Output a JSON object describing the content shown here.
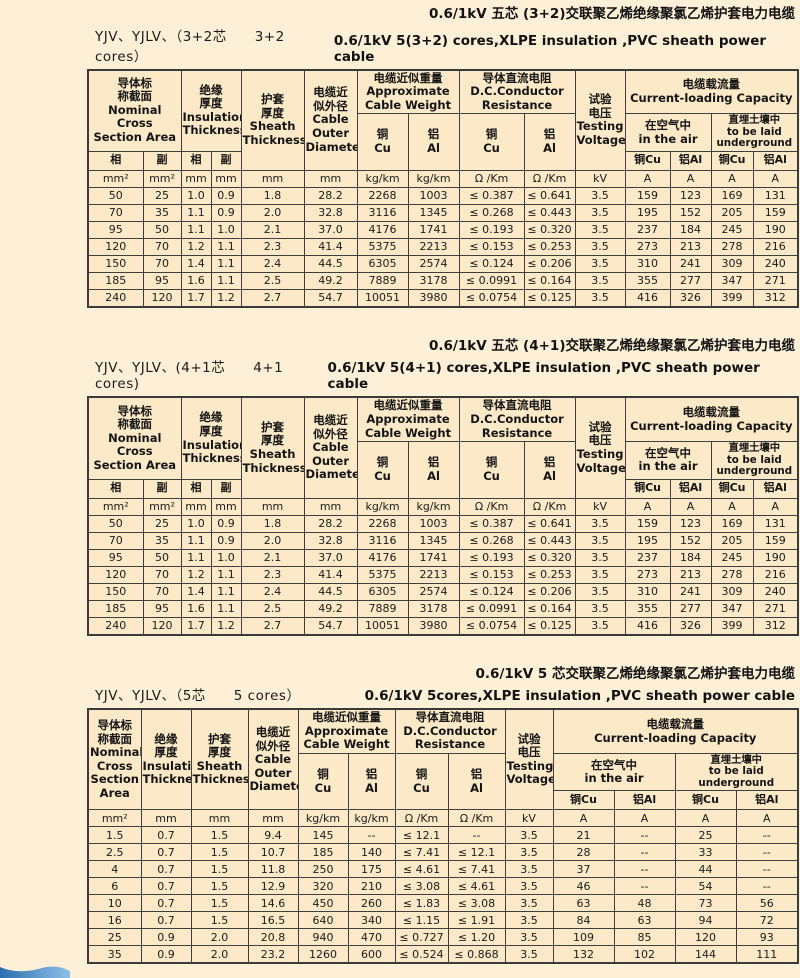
{
  "colors": {
    "page_bg": "#FDF0D7",
    "table_bg": "#FBE9C7",
    "border": "#3F3F3F",
    "wave_blue_dark": "#2A6FAE",
    "wave_blue_light": "#8FC0E8"
  },
  "sections": [
    {
      "title_zh": "0.6/1kV 五芯 (3+2)交联聚乙烯绝缘聚氯乙烯护套电力电缆",
      "title_en": "0.6/1kV 5(3+2) cores,XLPE insulation ,PVC sheath power cable",
      "model_label": "YJV、YJLV、（3+2芯　　3+2 cores）"
    },
    {
      "title_zh": "0.6/1kV 五芯 (4+1)交联聚乙烯绝缘聚氯乙烯护套电力电缆",
      "title_en": "0.6/1kV 5(4+1) cores,XLPE insulation ,PVC sheath power cable",
      "model_label": "YJV、YJLV、(4+1芯　　4+1 cores)"
    },
    {
      "title_zh": "0.6/1kV 5 芯交联聚乙烯绝缘聚氯乙烯护套电力电缆",
      "title_en": "0.6/1kV 5cores,XLPE insulation ,PVC sheath power cable",
      "model_label": "YJV、YJLV、（5芯　　5 cores）"
    }
  ],
  "headers": {
    "common": {
      "ncsa": "导体标\n称截面\nNominal Cross\nSection Area",
      "insulation": "绝缘\n厚度\nInsulation\nThickness",
      "sheath": "护套\n厚度\nSheath\nThickness",
      "outer": "电缆近\n似外径\nCable\nOuter\nDiameter",
      "weight": "电缆近似重量\nApproximate\nCable Weight",
      "dc_resistance": "导体直流电阻\nD.C.Conductor\nResistance",
      "voltage": "试验\n电压\nTesting\nVoltage",
      "capacity": "电缆载流量\nCurrent-loading Capacity",
      "air": "在空气中\nin the air",
      "underground": "直埋土壤中\nto be laid\nunderground",
      "cu": "铜\nCu",
      "al": "铝\nAl",
      "cu_short": "铜Cu",
      "al_short": "铝Al",
      "phase": "相",
      "aux": "副"
    },
    "five_core": {
      "ncsa": "导体标\n称截面\nNominal\nCross\nSection Area"
    }
  },
  "tables": {
    "t12_units": [
      [
        "mm²",
        "mm²",
        "mm",
        "mm",
        "mm",
        "mm",
        "kg/km",
        "kg/km",
        "Ω /Km",
        "Ω /Km",
        "kV",
        "A",
        "A",
        "A",
        "A"
      ]
    ],
    "t12_rows": [
      [
        "50",
        "25",
        "1.0",
        "0.9",
        "1.8",
        "28.2",
        "2268",
        "1003",
        "≤ 0.387",
        "≤ 0.641",
        "3.5",
        "159",
        "123",
        "169",
        "131"
      ],
      [
        "70",
        "35",
        "1.1",
        "0.9",
        "2.0",
        "32.8",
        "3116",
        "1345",
        "≤ 0.268",
        "≤ 0.443",
        "3.5",
        "195",
        "152",
        "205",
        "159"
      ],
      [
        "95",
        "50",
        "1.1",
        "1.0",
        "2.1",
        "37.0",
        "4176",
        "1741",
        "≤ 0.193",
        "≤ 0.320",
        "3.5",
        "237",
        "184",
        "245",
        "190"
      ],
      [
        "120",
        "70",
        "1.2",
        "1.1",
        "2.3",
        "41.4",
        "5375",
        "2213",
        "≤ 0.153",
        "≤ 0.253",
        "3.5",
        "273",
        "213",
        "278",
        "216"
      ],
      [
        "150",
        "70",
        "1.4",
        "1.1",
        "2.4",
        "44.5",
        "6305",
        "2574",
        "≤ 0.124",
        "≤ 0.206",
        "3.5",
        "310",
        "241",
        "309",
        "240"
      ],
      [
        "185",
        "95",
        "1.6",
        "1.1",
        "2.5",
        "49.2",
        "7889",
        "3178",
        "≤ 0.0991",
        "≤ 0.164",
        "3.5",
        "355",
        "277",
        "347",
        "271"
      ],
      [
        "240",
        "120",
        "1.7",
        "1.2",
        "2.7",
        "54.7",
        "10051",
        "3980",
        "≤ 0.0754",
        "≤ 0.125",
        "3.5",
        "416",
        "326",
        "399",
        "312"
      ]
    ],
    "t3_units": [
      [
        "mm²",
        "mm",
        "mm",
        "mm",
        "kg/km",
        "kg/km",
        "Ω /Km",
        "Ω /Km",
        "kV",
        "A",
        "A",
        "A",
        "A"
      ]
    ],
    "t3_rows": [
      [
        "1.5",
        "0.7",
        "1.5",
        "9.4",
        "145",
        "--",
        "≤ 12.1",
        "--",
        "3.5",
        "21",
        "--",
        "25",
        "--"
      ],
      [
        "2.5",
        "0.7",
        "1.5",
        "10.7",
        "185",
        "140",
        "≤ 7.41",
        "≤ 12.1",
        "3.5",
        "28",
        "--",
        "33",
        "--"
      ],
      [
        "4",
        "0.7",
        "1.5",
        "11.8",
        "250",
        "175",
        "≤ 4.61",
        "≤ 7.41",
        "3.5",
        "37",
        "--",
        "44",
        "--"
      ],
      [
        "6",
        "0.7",
        "1.5",
        "12.9",
        "320",
        "210",
        "≤ 3.08",
        "≤ 4.61",
        "3.5",
        "46",
        "--",
        "54",
        "--"
      ],
      [
        "10",
        "0.7",
        "1.5",
        "14.6",
        "450",
        "260",
        "≤ 1.83",
        "≤ 3.08",
        "3.5",
        "63",
        "48",
        "73",
        "56"
      ],
      [
        "16",
        "0.7",
        "1.5",
        "16.5",
        "640",
        "340",
        "≤ 1.15",
        "≤ 1.91",
        "3.5",
        "84",
        "63",
        "94",
        "72"
      ],
      [
        "25",
        "0.9",
        "2.0",
        "20.8",
        "940",
        "470",
        "≤ 0.727",
        "≤ 1.20",
        "3.5",
        "109",
        "85",
        "120",
        "93"
      ],
      [
        "35",
        "0.9",
        "2.0",
        "23.2",
        "1260",
        "600",
        "≤ 0.524",
        "≤ 0.868",
        "3.5",
        "132",
        "102",
        "144",
        "111"
      ]
    ]
  }
}
